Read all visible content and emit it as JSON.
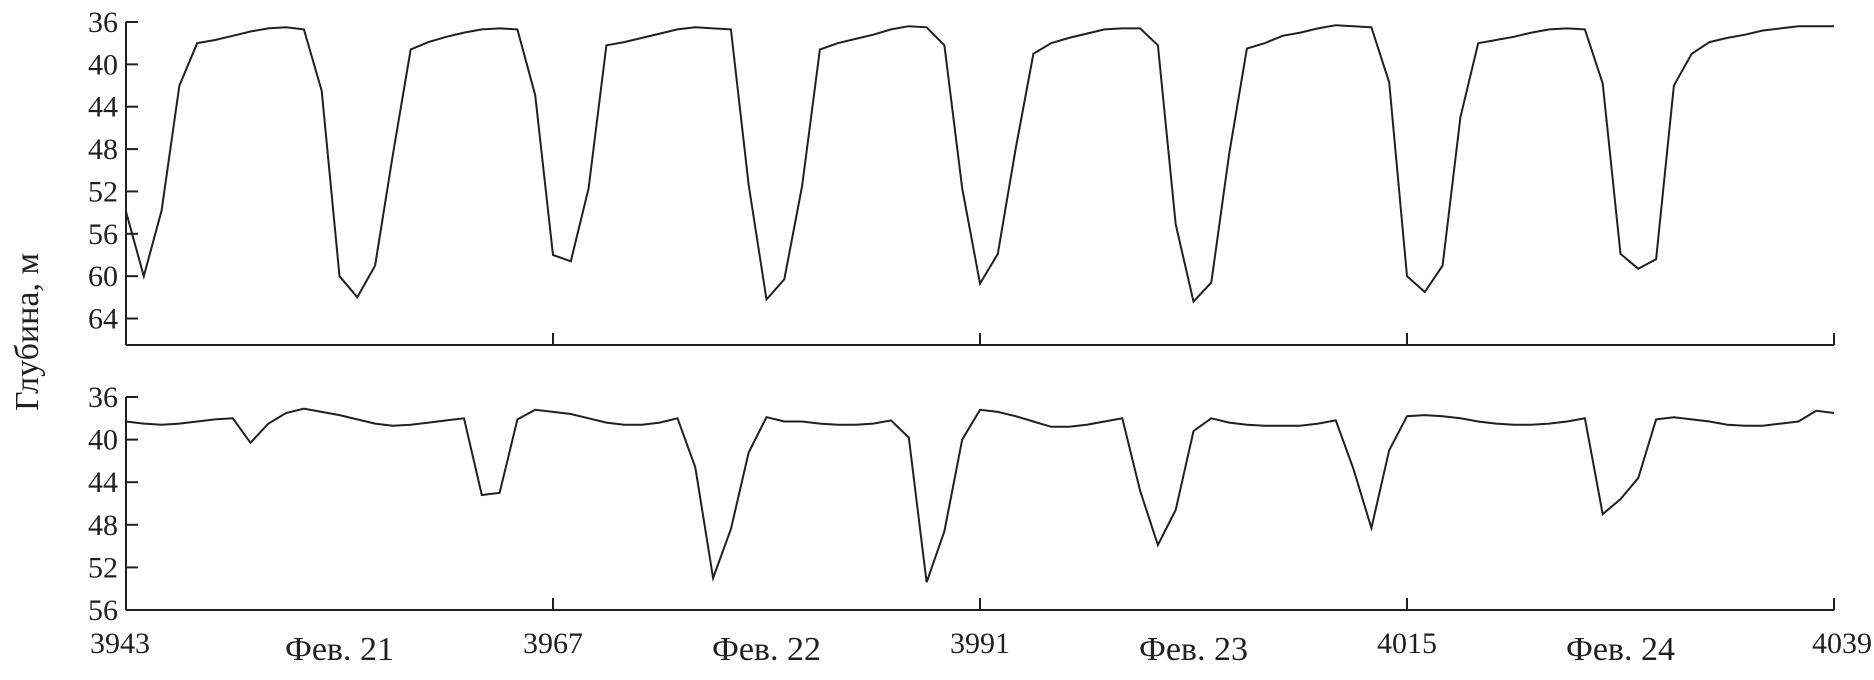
{
  "chart_data": [
    {
      "type": "line",
      "ylabel": "Глубина, м",
      "ylim": [
        36,
        66.5
      ],
      "y_inverted": true,
      "y_ticks": [
        "36",
        "40",
        "44",
        "48",
        "52",
        "56",
        "60",
        "64"
      ],
      "xlim": [
        3943,
        4039
      ],
      "series": [
        {
          "x": [
            3943,
            3944,
            3945,
            3946,
            3947,
            3948,
            3949,
            3950,
            3951,
            3952,
            3953,
            3954,
            3955,
            3956,
            3957,
            3958,
            3959,
            3960,
            3961,
            3962,
            3963,
            3964,
            3965,
            3966,
            3967,
            3968,
            3969,
            3970,
            3971,
            3972,
            3973,
            3974,
            3975,
            3976,
            3977,
            3978,
            3979,
            3980,
            3981,
            3982,
            3983,
            3984,
            3985,
            3986,
            3987,
            3988,
            3989,
            3990,
            3991,
            3992,
            3993,
            3994,
            3995,
            3996,
            3997,
            3998,
            3999,
            4000,
            4001,
            4002,
            4003,
            4004,
            4005,
            4006,
            4007,
            4008,
            4009,
            4010,
            4011,
            4012,
            4013,
            4014,
            4015,
            4016,
            4017,
            4018,
            4019,
            4020,
            4021,
            4022,
            4023,
            4024,
            4025,
            4026,
            4027,
            4028,
            4029,
            4030,
            4031,
            4032,
            4033,
            4034,
            4035,
            4036,
            4037,
            4038,
            4039
          ],
          "values": [
            53.9,
            60.0,
            53.8,
            42.0,
            38.0,
            37.7,
            37.3,
            36.9,
            36.6,
            36.5,
            36.7,
            42.5,
            60.0,
            62.0,
            59.0,
            48.5,
            38.6,
            37.9,
            37.4,
            37.0,
            36.7,
            36.6,
            36.7,
            42.9,
            58.0,
            58.6,
            51.7,
            38.2,
            37.9,
            37.5,
            37.1,
            36.7,
            36.5,
            36.6,
            36.7,
            51.4,
            62.2,
            60.3,
            51.5,
            38.6,
            38.0,
            37.6,
            37.2,
            36.7,
            36.4,
            36.5,
            38.2,
            51.7,
            60.7,
            57.9,
            48.0,
            39.0,
            38.0,
            37.5,
            37.1,
            36.7,
            36.6,
            36.6,
            38.2,
            55.1,
            62.4,
            60.6,
            48.5,
            38.5,
            38.0,
            37.3,
            37.0,
            36.6,
            36.3,
            36.4,
            36.5,
            41.7,
            60.0,
            61.5,
            59.0,
            45.0,
            38.0,
            37.7,
            37.4,
            37.0,
            36.7,
            36.6,
            36.7,
            41.8,
            57.9,
            59.3,
            58.4,
            42.0,
            39.0,
            37.9,
            37.5,
            37.2,
            36.8,
            36.6,
            36.4,
            36.4,
            36.4
          ]
        }
      ]
    },
    {
      "type": "line",
      "ylim": [
        36,
        56
      ],
      "y_inverted": true,
      "y_ticks": [
        "36",
        "40",
        "44",
        "48",
        "52",
        "56"
      ],
      "xlim": [
        3943,
        4039
      ],
      "x_ticks": [
        "3943",
        "3967",
        "3991",
        "4015",
        "4039"
      ],
      "date_labels": [
        "Фев. 21",
        "Фев. 22",
        "Фев. 23",
        "Фев. 24"
      ],
      "series": [
        {
          "x": [
            3943,
            3944,
            3945,
            3946,
            3947,
            3948,
            3949,
            3950,
            3951,
            3952,
            3953,
            3954,
            3955,
            3956,
            3957,
            3958,
            3959,
            3960,
            3961,
            3962,
            3963,
            3964,
            3965,
            3966,
            3967,
            3968,
            3969,
            3970,
            3971,
            3972,
            3973,
            3974,
            3975,
            3976,
            3977,
            3978,
            3979,
            3980,
            3981,
            3982,
            3983,
            3984,
            3985,
            3986,
            3987,
            3988,
            3989,
            3990,
            3991,
            3992,
            3993,
            3994,
            3995,
            3996,
            3997,
            3998,
            3999,
            4000,
            4001,
            4002,
            4003,
            4004,
            4005,
            4006,
            4007,
            4008,
            4009,
            4010,
            4011,
            4012,
            4013,
            4014,
            4015,
            4016,
            4017,
            4018,
            4019,
            4020,
            4021,
            4022,
            4023,
            4024,
            4025,
            4026,
            4027,
            4028,
            4029,
            4030,
            4031,
            4032,
            4033,
            4034,
            4035,
            4036,
            4037,
            4038,
            4039
          ],
          "values": [
            38.3,
            38.5,
            38.6,
            38.5,
            38.3,
            38.1,
            38.0,
            40.3,
            38.5,
            37.5,
            37.1,
            37.4,
            37.7,
            38.1,
            38.5,
            38.7,
            38.6,
            38.4,
            38.2,
            38.0,
            45.2,
            45.0,
            38.1,
            37.2,
            37.4,
            37.6,
            38.0,
            38.4,
            38.6,
            38.6,
            38.4,
            38.0,
            42.6,
            53.0,
            48.4,
            41.2,
            37.9,
            38.3,
            38.3,
            38.5,
            38.6,
            38.6,
            38.5,
            38.2,
            39.8,
            53.4,
            48.6,
            40.0,
            37.2,
            37.4,
            37.8,
            38.3,
            38.8,
            38.8,
            38.6,
            38.3,
            38.0,
            44.8,
            49.9,
            46.6,
            39.2,
            38.0,
            38.4,
            38.6,
            38.7,
            38.7,
            38.7,
            38.5,
            38.2,
            42.8,
            48.3,
            41.0,
            37.8,
            37.7,
            37.8,
            38.0,
            38.3,
            38.5,
            38.6,
            38.6,
            38.5,
            38.3,
            38.0,
            47.0,
            45.6,
            43.6,
            38.1,
            37.9,
            38.1,
            38.3,
            38.6,
            38.7,
            38.7,
            38.5,
            38.3,
            37.3,
            37.5
          ]
        }
      ]
    }
  ]
}
